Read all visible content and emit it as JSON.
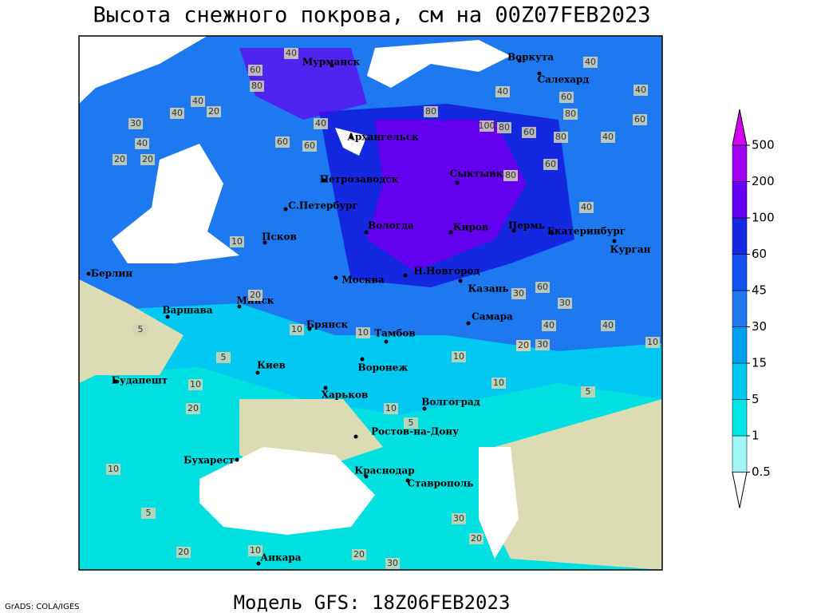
{
  "title": "Высота снежного покрова, см на 00Z07FEB2023",
  "footer": "Модель GFS: 18Z06FEB2023",
  "credit": "GrADS: COLA/IGES",
  "colorbar": {
    "levels": [
      0.5,
      1,
      5,
      15,
      30,
      45,
      60,
      100,
      200,
      500
    ],
    "colors": [
      "#ffffff",
      "#a0f5f5",
      "#00e6e6",
      "#00c8f0",
      "#00a0f0",
      "#1e78f0",
      "#1450f0",
      "#1428e0",
      "#6400f0",
      "#a000f0",
      "#d200f0"
    ]
  },
  "cities": [
    "Мурманск",
    "Воркута",
    "Салехард",
    "Архангельск",
    "Сыктывкар",
    "Петрозаводск",
    "С.Петербург",
    "Псков",
    "Вологда",
    "Киров",
    "Пермь",
    "Екатеринбург",
    "Курган",
    "Берлин",
    "Варшава",
    "Минск",
    "Москва",
    "Н.Новгород",
    "Казань",
    "Брянск",
    "Тамбов",
    "Самара",
    "Киев",
    "Воронеж",
    "Будапешт",
    "Харьков",
    "Волгоград",
    "Ростов-на-Дону",
    "Бухарест",
    "Краснодар",
    "Ставрополь",
    "Анкара"
  ],
  "contour_labels": [
    40,
    60,
    80,
    40,
    20,
    30,
    40,
    40,
    20,
    20,
    60,
    60,
    40,
    80,
    100,
    80,
    60,
    80,
    40,
    60,
    40,
    40,
    60,
    80,
    40,
    60,
    80,
    40,
    10,
    20,
    10,
    10,
    5,
    10,
    20,
    5,
    10,
    10,
    10,
    5,
    10,
    5,
    20,
    40,
    40,
    30,
    20,
    30,
    60,
    30,
    10,
    5,
    20,
    10,
    20,
    30,
    30,
    20
  ]
}
